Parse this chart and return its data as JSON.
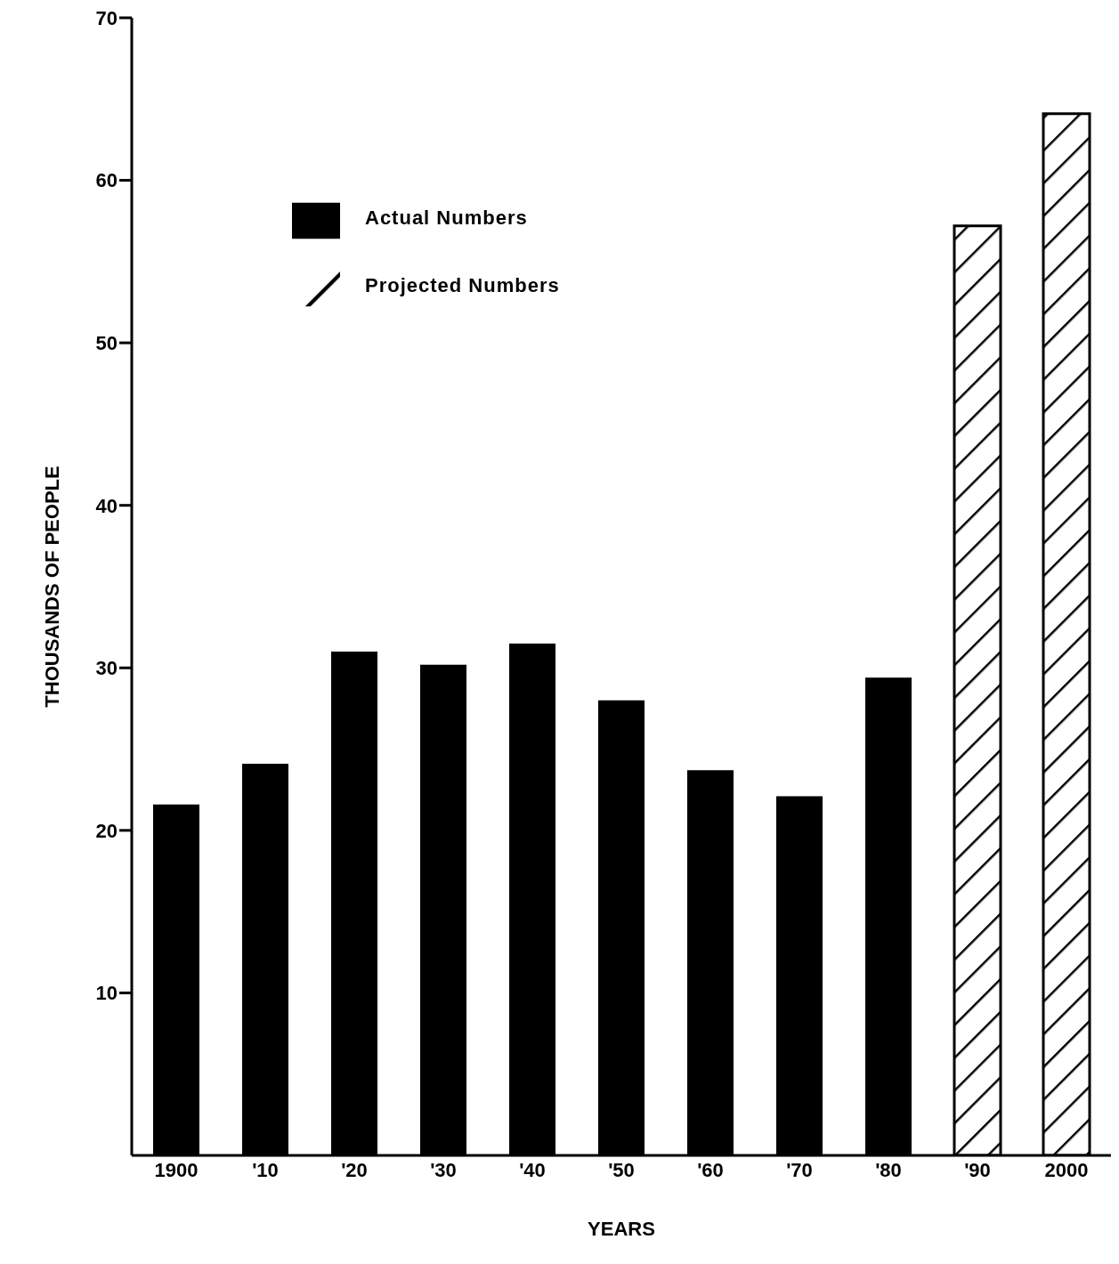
{
  "chart_data": {
    "type": "bar",
    "xlabel": "YEARS",
    "ylabel": "THOUSANDS OF PEOPLE",
    "categories": [
      "1900",
      "'10",
      "'20",
      "'30",
      "'40",
      "'50",
      "'60",
      "'70",
      "'80",
      "'90",
      "2000"
    ],
    "series": [
      {
        "name": "Actual Numbers",
        "color": "#000000",
        "values": [
          21.6,
          24.1,
          31.0,
          30.2,
          31.5,
          28.0,
          23.7,
          22.1,
          29.4,
          null,
          null
        ]
      },
      {
        "name": "Projected Numbers",
        "color": "#000000",
        "values": [
          null,
          null,
          null,
          null,
          null,
          null,
          null,
          null,
          null,
          57.2,
          64.1
        ]
      }
    ],
    "ylim": [
      0,
      70
    ],
    "yticks": [
      10,
      20,
      30,
      40,
      50,
      60,
      70
    ],
    "grid": false,
    "legend": "top left"
  }
}
